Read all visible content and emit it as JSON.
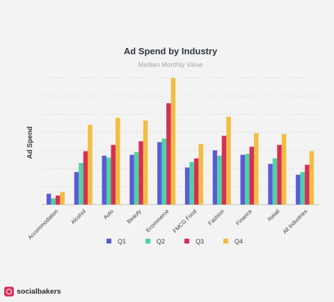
{
  "chart_data": {
    "type": "bar",
    "title": "Ad Spend by Industry",
    "subtitle": "Median Monthly Value",
    "xlabel": "",
    "ylabel": "Ad Spend",
    "ylim": [
      0,
      7
    ],
    "grid": true,
    "legend_position": "bottom",
    "categories": [
      "Accommodation",
      "Alcohol",
      "Auto",
      "Beauty",
      "Ecommerce",
      "FMCG Food",
      "Fashion",
      "Finance",
      "Retail",
      "All Industries"
    ],
    "series": [
      {
        "name": "Q1",
        "color": "#5b5bd6",
        "values": [
          0.6,
          1.8,
          2.7,
          2.75,
          3.45,
          2.05,
          3.0,
          2.75,
          2.25,
          1.65
        ]
      },
      {
        "name": "Q2",
        "color": "#4fd1a5",
        "values": [
          0.35,
          2.3,
          2.6,
          2.9,
          3.65,
          2.35,
          2.7,
          2.8,
          2.55,
          1.8
        ]
      },
      {
        "name": "Q3",
        "color": "#d62f57",
        "values": [
          0.5,
          2.95,
          3.3,
          3.5,
          5.6,
          2.55,
          3.8,
          3.2,
          3.3,
          2.2
        ]
      },
      {
        "name": "Q4",
        "color": "#f2bd42",
        "values": [
          0.7,
          4.4,
          4.8,
          4.65,
          7.0,
          3.35,
          4.85,
          3.95,
          3.9,
          2.95
        ]
      }
    ]
  },
  "brand": {
    "name": "socialbakers",
    "logo_icon": "socialbakers-logo-icon"
  }
}
